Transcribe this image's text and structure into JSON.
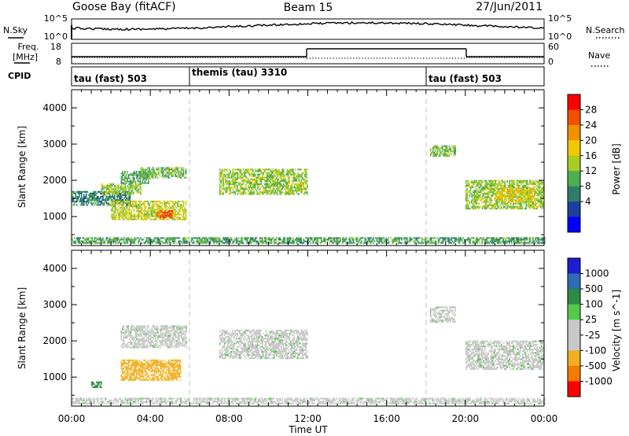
{
  "header": {
    "station": "Goose Bay (fitACF)",
    "beam": "Beam 15",
    "date": "27/Jun/2011"
  },
  "sky_panel": {
    "left_label": "N.Sky",
    "right_label": "N.Search",
    "left_ticks": [
      "10^5",
      "10^0"
    ],
    "right_ticks": [
      "10^5",
      "10^0"
    ]
  },
  "freq_panel": {
    "left_label_1": "Freq.",
    "left_label_2": "[MHz]",
    "right_label": "Nave",
    "left_ticks": [
      "18",
      "8"
    ],
    "right_ticks": [
      "60",
      "0"
    ]
  },
  "cpid_panel": {
    "label": "CPID",
    "modes": [
      {
        "text": "tau (fast) 503",
        "start_hour": 0
      },
      {
        "text": "themis (tau) 3310",
        "start_hour": 6
      },
      {
        "text": "tau (fast) 503",
        "start_hour": 18
      }
    ]
  },
  "time_axis": {
    "label": "Time UT",
    "tick_labels": [
      "00:00",
      "04:00",
      "08:00",
      "12:00",
      "16:00",
      "20:00",
      "00:00"
    ],
    "tick_hours": [
      0,
      4,
      8,
      12,
      16,
      20,
      24
    ]
  },
  "power_panel": {
    "ylabel": "Slant Range [km]",
    "y_tick_labels": [
      "1000",
      "2000",
      "3000",
      "4000"
    ],
    "colorbar_label": "Power [dB]",
    "colorbar_ticks": [
      "28",
      "24",
      "20",
      "16",
      "12",
      "8",
      "4"
    ]
  },
  "velocity_panel": {
    "ylabel": "Slant Range [km]",
    "y_tick_labels": [
      "1000",
      "2000",
      "3000",
      "4000"
    ],
    "colorbar_label": "Velocity [m s^-1]",
    "colorbar_ticks": [
      "1000",
      "500",
      "100",
      "25",
      "-25",
      "-100",
      "-500",
      "-1000"
    ]
  },
  "colors": {
    "power_scale": [
      "#ff0000",
      "#f24f00",
      "#f29100",
      "#f2c800",
      "#aacc22",
      "#4caf50",
      "#2e7d6b",
      "#1a3f9c",
      "#0000ff"
    ],
    "velocity_scale": [
      "#1c1cd0",
      "#2e6db3",
      "#2f8a45",
      "#55c94a",
      "#c8c8c8",
      "#c8c8c8",
      "#f0b020",
      "#f47b00",
      "#ff0000"
    ],
    "grid_dash": "#c0c0c0"
  },
  "chart_data": [
    {
      "type": "heatmap",
      "title": "Goose Bay (fitACF) Beam 15",
      "xlabel": "Time UT",
      "ylabel": "Slant Range [km]",
      "xlim": [
        0,
        24
      ],
      "ylim": [
        200,
        4500
      ],
      "colorbar": "Power [dB]",
      "clim": [
        0,
        30
      ],
      "regions": [
        {
          "t": [
            0.0,
            3.0
          ],
          "r": [
            1300,
            1700
          ],
          "value": 8
        },
        {
          "t": [
            1.5,
            3.5
          ],
          "r": [
            1600,
            1900
          ],
          "value": 14
        },
        {
          "t": [
            2.5,
            4.0
          ],
          "r": [
            1900,
            2250
          ],
          "value": 10
        },
        {
          "t": [
            3.5,
            5.8
          ],
          "r": [
            2050,
            2350
          ],
          "value": 12
        },
        {
          "t": [
            2.0,
            5.8
          ],
          "r": [
            900,
            1400
          ],
          "value": 16
        },
        {
          "t": [
            4.3,
            5.1
          ],
          "r": [
            950,
            1150
          ],
          "value": 26
        },
        {
          "t": [
            7.5,
            12.0
          ],
          "r": [
            1600,
            2300
          ],
          "value": 14
        },
        {
          "t": [
            18.2,
            19.5
          ],
          "r": [
            2650,
            2950
          ],
          "value": 13
        },
        {
          "t": [
            20.0,
            24.0
          ],
          "r": [
            1200,
            2000
          ],
          "value": 14
        },
        {
          "t": [
            21.5,
            23.5
          ],
          "r": [
            1400,
            1800
          ],
          "value": 18
        },
        {
          "t": [
            0.0,
            24.0
          ],
          "r": [
            250,
            400
          ],
          "value": 10
        }
      ]
    },
    {
      "type": "heatmap",
      "title": "Goose Bay (fitACF) Beam 15",
      "xlabel": "Time UT",
      "ylabel": "Slant Range [km]",
      "xlim": [
        0,
        24
      ],
      "ylim": [
        200,
        4500
      ],
      "colorbar": "Velocity [m s^-1]",
      "clim": [
        -1000,
        1000
      ],
      "regions": [
        {
          "t": [
            2.5,
            5.8
          ],
          "r": [
            1800,
            2400
          ],
          "value": 0
        },
        {
          "t": [
            7.5,
            12.0
          ],
          "r": [
            1500,
            2300
          ],
          "value": 0
        },
        {
          "t": [
            18.2,
            19.5
          ],
          "r": [
            2500,
            2950
          ],
          "value": 0
        },
        {
          "t": [
            20.0,
            24.0
          ],
          "r": [
            1200,
            2000
          ],
          "value": 0
        },
        {
          "t": [
            2.5,
            5.5
          ],
          "r": [
            900,
            1450
          ],
          "value": -150
        },
        {
          "t": [
            1.0,
            1.5
          ],
          "r": [
            700,
            850
          ],
          "value": 150
        },
        {
          "t": [
            0.0,
            24.0
          ],
          "r": [
            250,
            400
          ],
          "value": 0
        }
      ]
    }
  ]
}
